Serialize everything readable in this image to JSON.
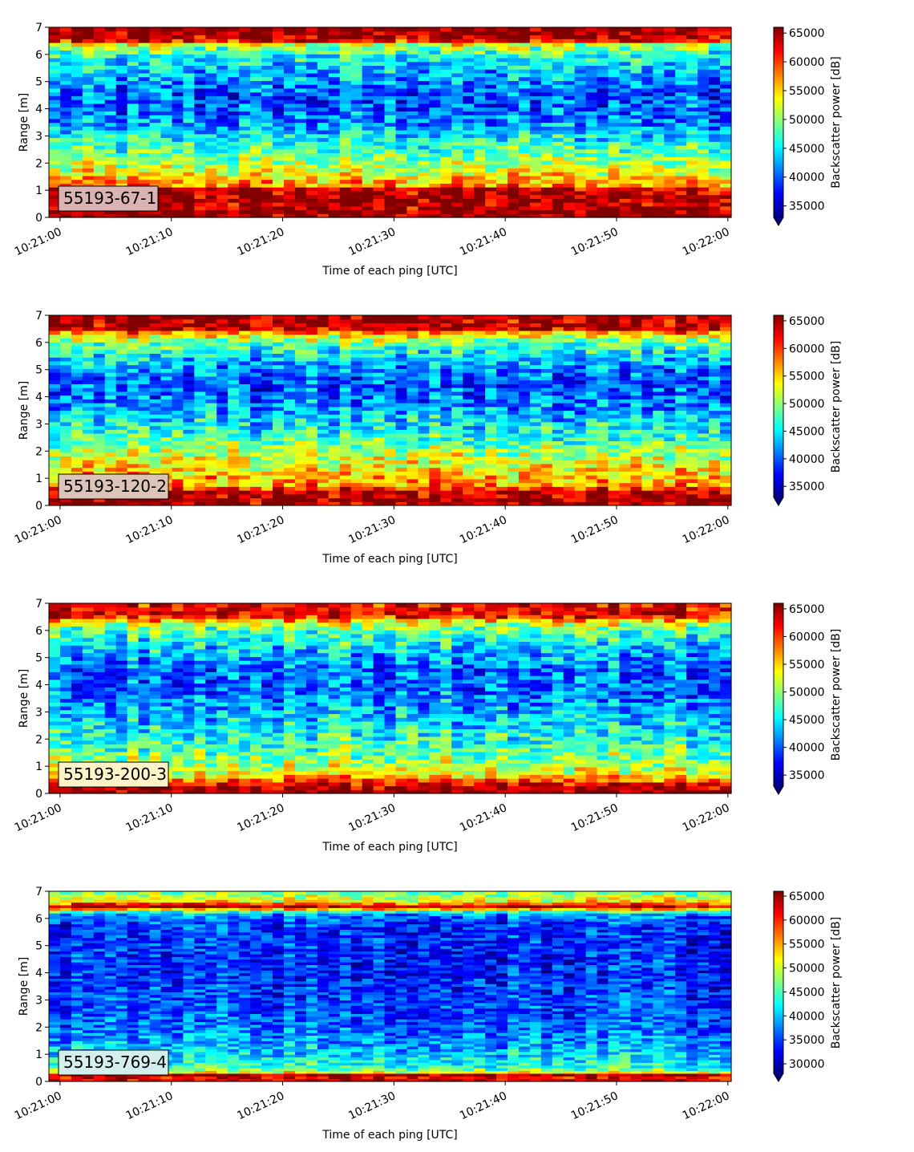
{
  "chart_data": [
    {
      "type": "heatmap",
      "label": "55193-67-1",
      "label_bg": "#dcb3b3",
      "xlabel": "Time of each ping [UTC]",
      "ylabel": "Range [m]",
      "xticks": [
        "10:21:00",
        "10:21:10",
        "10:21:20",
        "10:21:30",
        "10:21:40",
        "10:21:50",
        "10:22:00"
      ],
      "x_range_s": [
        -1,
        60.3
      ],
      "ylim": [
        0,
        7
      ],
      "yticks": [
        0,
        1,
        2,
        3,
        4,
        5,
        6,
        7
      ],
      "colorbar": {
        "label": "Backscatter power [dB]",
        "vmin": 33000,
        "vmax": 66000,
        "ticks": [
          35000,
          40000,
          45000,
          50000,
          55000,
          60000,
          65000
        ],
        "extend": "min"
      },
      "profile": [
        [
          0,
          65500
        ],
        [
          0.25,
          65500
        ],
        [
          0.4,
          64000
        ],
        [
          0.75,
          65000
        ],
        [
          1.05,
          64000
        ],
        [
          1.2,
          57000
        ],
        [
          1.6,
          54000
        ],
        [
          2.0,
          50500
        ],
        [
          2.5,
          47500
        ],
        [
          3.0,
          45000
        ],
        [
          3.5,
          41500
        ],
        [
          4.0,
          40000
        ],
        [
          4.5,
          39500
        ],
        [
          5.0,
          41500
        ],
        [
          5.5,
          43500
        ],
        [
          6.0,
          46500
        ],
        [
          6.35,
          51000
        ],
        [
          6.55,
          64000
        ],
        [
          7.0,
          66000
        ]
      ]
    },
    {
      "type": "heatmap",
      "label": "55193-120-2",
      "label_bg": "#dcc4b8",
      "xlabel": "Time of each ping [UTC]",
      "ylabel": "Range [m]",
      "xticks": [
        "10:21:00",
        "10:21:10",
        "10:21:20",
        "10:21:30",
        "10:21:40",
        "10:21:50",
        "10:22:00"
      ],
      "x_range_s": [
        -1,
        60.3
      ],
      "ylim": [
        0,
        7
      ],
      "yticks": [
        0,
        1,
        2,
        3,
        4,
        5,
        6,
        7
      ],
      "colorbar": {
        "label": "Backscatter power [dB]",
        "vmin": 33000,
        "vmax": 66000,
        "ticks": [
          35000,
          40000,
          45000,
          50000,
          55000,
          60000,
          65000
        ],
        "extend": "min"
      },
      "profile": [
        [
          0,
          65500
        ],
        [
          0.3,
          65000
        ],
        [
          0.55,
          64000
        ],
        [
          0.7,
          57000
        ],
        [
          1.0,
          56000
        ],
        [
          1.5,
          53500
        ],
        [
          2.0,
          51000
        ],
        [
          2.5,
          47000
        ],
        [
          3.0,
          45000
        ],
        [
          3.5,
          42500
        ],
        [
          4.0,
          40500
        ],
        [
          4.5,
          39500
        ],
        [
          5.0,
          41000
        ],
        [
          5.5,
          44500
        ],
        [
          6.0,
          49000
        ],
        [
          6.3,
          54000
        ],
        [
          6.5,
          63000
        ],
        [
          7.0,
          65500
        ]
      ]
    },
    {
      "type": "heatmap",
      "label": "55193-200-3",
      "label_bg": "#fdf3c7",
      "xlabel": "Time of each ping [UTC]",
      "ylabel": "Range [m]",
      "xticks": [
        "10:21:00",
        "10:21:10",
        "10:21:20",
        "10:21:30",
        "10:21:40",
        "10:21:50",
        "10:22:00"
      ],
      "x_range_s": [
        -1,
        60.3
      ],
      "ylim": [
        0,
        7
      ],
      "yticks": [
        0,
        1,
        2,
        3,
        4,
        5,
        6,
        7
      ],
      "colorbar": {
        "label": "Backscatter power [dB]",
        "vmin": 33000,
        "vmax": 66000,
        "ticks": [
          35000,
          40000,
          45000,
          50000,
          55000,
          60000,
          65000
        ],
        "extend": "min"
      },
      "profile": [
        [
          0,
          66000
        ],
        [
          0.25,
          65000
        ],
        [
          0.45,
          60000
        ],
        [
          0.7,
          53500
        ],
        [
          1.0,
          51500
        ],
        [
          1.5,
          49000
        ],
        [
          2.0,
          47000
        ],
        [
          2.5,
          45000
        ],
        [
          3.0,
          43000
        ],
        [
          3.5,
          41500
        ],
        [
          4.0,
          40500
        ],
        [
          4.5,
          40500
        ],
        [
          5.0,
          42500
        ],
        [
          5.5,
          45000
        ],
        [
          6.0,
          48000
        ],
        [
          6.3,
          53000
        ],
        [
          6.55,
          63000
        ],
        [
          7.0,
          62000
        ]
      ]
    },
    {
      "type": "heatmap",
      "label": "55193-769-4",
      "label_bg": "#d3efed",
      "xlabel": "Time of each ping [UTC]",
      "ylabel": "Range [m]",
      "xticks": [
        "10:21:00",
        "10:21:10",
        "10:21:20",
        "10:21:30",
        "10:21:40",
        "10:21:50",
        "10:22:00"
      ],
      "x_range_s": [
        -1,
        60.3
      ],
      "ylim": [
        0,
        7
      ],
      "yticks": [
        0,
        1,
        2,
        3,
        4,
        5,
        6,
        7
      ],
      "colorbar": {
        "label": "Backscatter power [dB]",
        "vmin": 28000,
        "vmax": 66000,
        "ticks": [
          30000,
          35000,
          40000,
          45000,
          50000,
          55000,
          60000,
          65000
        ],
        "extend": "min"
      },
      "profile": [
        [
          0,
          63000
        ],
        [
          0.15,
          62000
        ],
        [
          0.25,
          65000
        ],
        [
          0.32,
          52000
        ],
        [
          0.5,
          44000
        ],
        [
          1.0,
          41000
        ],
        [
          1.5,
          38000
        ],
        [
          2.0,
          36500
        ],
        [
          2.5,
          35500
        ],
        [
          3.0,
          35000
        ],
        [
          4.0,
          34000
        ],
        [
          5.0,
          34000
        ],
        [
          5.8,
          34500
        ],
        [
          6.2,
          39000
        ],
        [
          6.45,
          64000
        ],
        [
          6.65,
          52000
        ],
        [
          7.0,
          46000
        ]
      ]
    }
  ]
}
